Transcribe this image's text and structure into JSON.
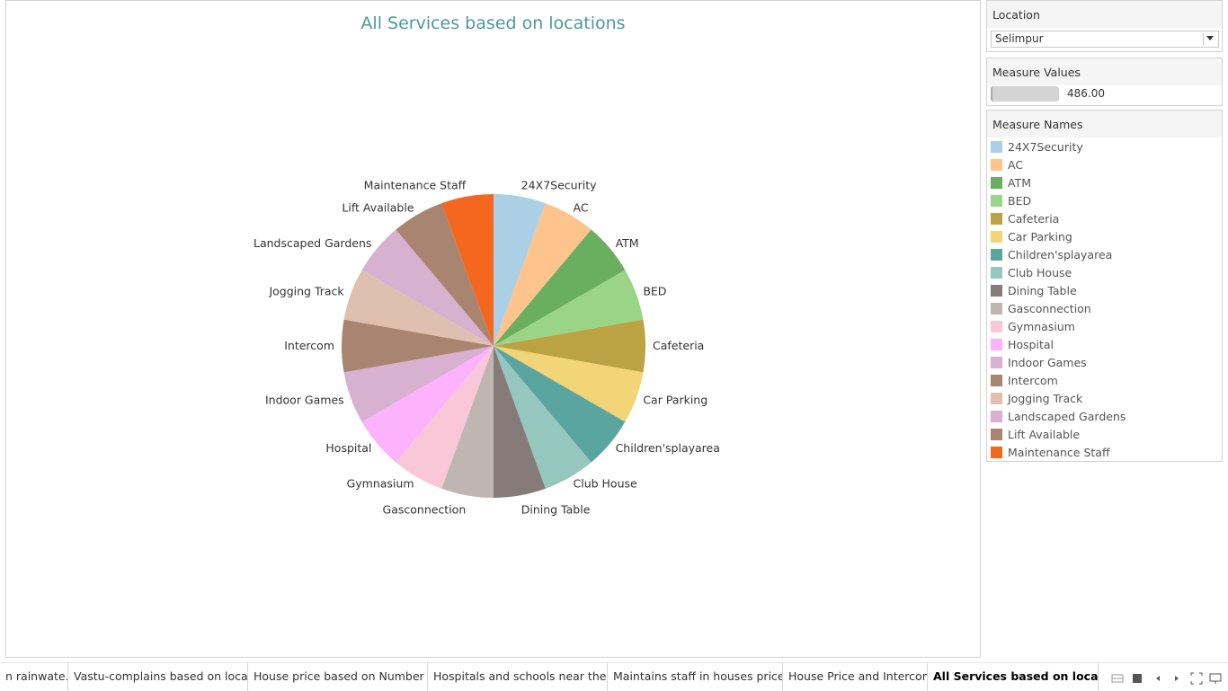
{
  "chart_data": {
    "type": "pie",
    "title": "All Services based on locations",
    "slices": [
      {
        "label": "24X7Security",
        "value": 27,
        "color": "#abd0e6"
      },
      {
        "label": "AC",
        "value": 27,
        "color": "#ffc48c"
      },
      {
        "label": "ATM",
        "value": 27,
        "color": "#6aae60"
      },
      {
        "label": "BED",
        "value": 27,
        "color": "#9ad587"
      },
      {
        "label": "Cafeteria",
        "value": 27,
        "color": "#bba344"
      },
      {
        "label": "Car Parking",
        "value": 27,
        "color": "#f2d576"
      },
      {
        "label": "Children'splayarea",
        "value": 27,
        "color": "#5ba5a0"
      },
      {
        "label": "Club House",
        "value": 27,
        "color": "#95c7bf"
      },
      {
        "label": "Dining Table",
        "value": 27,
        "color": "#877b7a"
      },
      {
        "label": "Gasconnection",
        "value": 27,
        "color": "#c0b6b1"
      },
      {
        "label": "Gymnasium",
        "value": 27,
        "color": "#f9c7d8"
      },
      {
        "label": "Hospital",
        "value": 27,
        "color": "#fdb2fd"
      },
      {
        "label": "Indoor Games",
        "value": 27,
        "color": "#d8b0d0"
      },
      {
        "label": "Intercom",
        "value": 27,
        "color": "#a88570"
      },
      {
        "label": "Jogging Track",
        "value": 27,
        "color": "#dfbfb0"
      },
      {
        "label": "Landscaped Gardens",
        "value": 27,
        "color": "#d8b0d0"
      },
      {
        "label": "Lift Available",
        "value": 27,
        "color": "#a88570"
      },
      {
        "label": "Maintenance Staff",
        "value": 27,
        "color": "#f4671f"
      }
    ]
  },
  "filters": {
    "location_title": "Location",
    "location_value": "Selimpur",
    "measure_values_title": "Measure Values",
    "measure_values_value": "486.00",
    "measure_values_fill": 0.3,
    "measure_names_title": "Measure Names"
  },
  "tabs": [
    {
      "label": "n rainwate..."
    },
    {
      "label": "Vastu-complains based on locati..."
    },
    {
      "label": "House price based on Number o..."
    },
    {
      "label": "Hospitals and schools near the ..."
    },
    {
      "label": "Maintains staff in houses prices"
    },
    {
      "label": "House Price and Intercom"
    },
    {
      "label": "All Services based on locations"
    }
  ],
  "nav_icons": [
    "grid-view-icon",
    "single-view-icon",
    "previous-icon",
    "next-icon",
    "fullscreen-icon",
    "presentation-icon"
  ]
}
